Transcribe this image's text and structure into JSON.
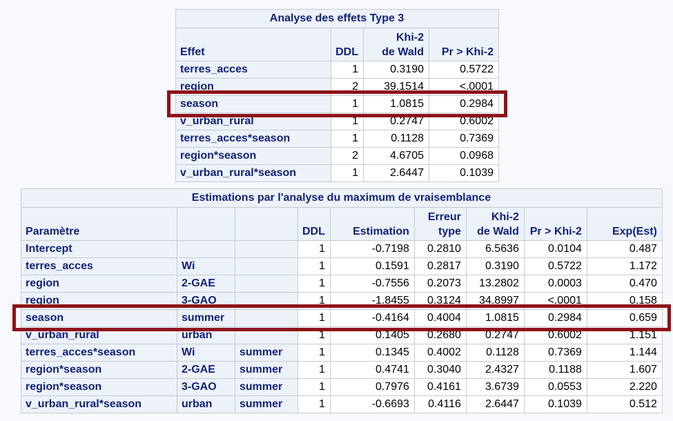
{
  "page": {
    "background": "#f8f9fd",
    "colors": {
      "header_background": "#edf2f9",
      "header_text": "#112277",
      "data_text": "#000000",
      "highlight_box": "#8e1219"
    }
  },
  "tables": [
    {
      "name": "type3-effects",
      "title": "Analyse des effets Type 3",
      "columns": [
        "Effet",
        "DDL",
        "Khi-2\nde Wald",
        "Pr > Khi-2"
      ],
      "rowheader_cols": 1,
      "highlight_row": 2,
      "rows": [
        [
          "terres_acces",
          "1",
          "0.3190",
          "0.5722"
        ],
        [
          "region",
          "2",
          "39.1514",
          "<.0001"
        ],
        [
          "season",
          "1",
          "1.0815",
          "0.2984"
        ],
        [
          "v_urban_rural",
          "1",
          "0.2747",
          "0.6002"
        ],
        [
          "terres_acces*season",
          "1",
          "0.1128",
          "0.7369"
        ],
        [
          "region*season",
          "2",
          "4.6705",
          "0.0968"
        ],
        [
          "v_urban_rural*season",
          "1",
          "2.6447",
          "0.1039"
        ]
      ]
    },
    {
      "name": "ml-estimates",
      "title": "Estimations par l'analyse du maximum de vraisemblance",
      "columns": [
        "Paramètre",
        "",
        "",
        "DDL",
        "Estimation",
        "Erreur\ntype",
        "Khi-2\nde Wald",
        "Pr > Khi-2",
        "Exp(Est)"
      ],
      "rowheader_cols": 3,
      "highlight_row": 4,
      "rows": [
        [
          "Intercept",
          "",
          "",
          "1",
          "-0.7198",
          "0.2810",
          "6.5636",
          "0.0104",
          "0.487"
        ],
        [
          "terres_acces",
          "Wi",
          "",
          "1",
          "0.1591",
          "0.2817",
          "0.3190",
          "0.5722",
          "1.172"
        ],
        [
          "region",
          "2-GAE",
          "",
          "1",
          "-0.7556",
          "0.2073",
          "13.2802",
          "0.0003",
          "0.470"
        ],
        [
          "region",
          "3-GAO",
          "",
          "1",
          "-1.8455",
          "0.3124",
          "34.8997",
          "<.0001",
          "0.158"
        ],
        [
          "season",
          "summer",
          "",
          "1",
          "-0.4164",
          "0.4004",
          "1.0815",
          "0.2984",
          "0.659"
        ],
        [
          "v_urban_rural",
          "urban",
          "",
          "1",
          "0.1405",
          "0.2680",
          "0.2747",
          "0.6002",
          "1.151"
        ],
        [
          "terres_acces*season",
          "Wi",
          "summer",
          "1",
          "0.1345",
          "0.4002",
          "0.1128",
          "0.7369",
          "1.144"
        ],
        [
          "region*season",
          "2-GAE",
          "summer",
          "1",
          "0.4741",
          "0.3040",
          "2.4327",
          "0.1188",
          "1.607"
        ],
        [
          "region*season",
          "3-GAO",
          "summer",
          "1",
          "0.7976",
          "0.4161",
          "3.6739",
          "0.0553",
          "2.220"
        ],
        [
          "v_urban_rural*season",
          "urban",
          "summer",
          "1",
          "-0.6693",
          "0.4116",
          "2.6447",
          "0.1039",
          "0.512"
        ]
      ]
    }
  ]
}
